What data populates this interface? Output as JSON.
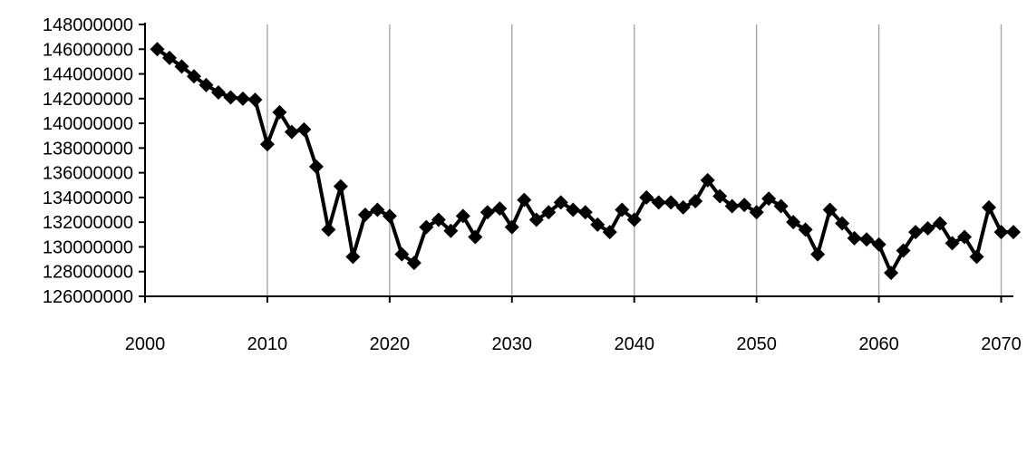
{
  "chart_data": {
    "type": "line",
    "title": "",
    "xlabel": "",
    "ylabel": "",
    "xlim": [
      2000,
      2071
    ],
    "ylim": [
      126000000,
      148000000
    ],
    "x_ticks": [
      2000,
      2010,
      2020,
      2030,
      2040,
      2050,
      2060,
      2070
    ],
    "x_tick_labels": [
      "2000",
      "2010",
      "2020",
      "2030",
      "2040",
      "2050",
      "2060",
      "2070"
    ],
    "y_ticks": [
      126000000,
      128000000,
      130000000,
      132000000,
      134000000,
      136000000,
      138000000,
      140000000,
      142000000,
      144000000,
      146000000,
      148000000
    ],
    "y_tick_labels": [
      "126000000",
      "128000000",
      "130000000",
      "132000000",
      "134000000",
      "136000000",
      "138000000",
      "140000000",
      "142000000",
      "144000000",
      "146000000",
      "148000000"
    ],
    "grid": "vertical-major",
    "legend": "none",
    "colors": {
      "line": "#000000",
      "marker": "#000000",
      "grid": "#a6a6a6",
      "axis": "#000000"
    },
    "series": [
      {
        "marker": "diamond",
        "x": [
          2001,
          2002,
          2003,
          2004,
          2005,
          2006,
          2007,
          2008,
          2009,
          2010,
          2011,
          2012,
          2013,
          2014,
          2015,
          2016,
          2017,
          2018,
          2019,
          2020,
          2021,
          2022,
          2023,
          2024,
          2025,
          2026,
          2027,
          2028,
          2029,
          2030,
          2031,
          2032,
          2033,
          2034,
          2035,
          2036,
          2037,
          2038,
          2039,
          2040,
          2041,
          2042,
          2043,
          2044,
          2045,
          2046,
          2047,
          2048,
          2049,
          2050,
          2051,
          2052,
          2053,
          2054,
          2055,
          2056,
          2057,
          2058,
          2059,
          2060,
          2061,
          2062,
          2063,
          2064,
          2065,
          2066,
          2067,
          2068,
          2069,
          2070,
          2071
        ],
        "values": [
          146000000,
          145300000,
          144600000,
          143800000,
          143100000,
          142500000,
          142100000,
          142000000,
          141900000,
          138300000,
          140900000,
          139300000,
          139500000,
          136500000,
          131400000,
          134900000,
          129200000,
          132600000,
          133000000,
          132500000,
          129400000,
          128700000,
          131600000,
          132200000,
          131300000,
          132500000,
          130800000,
          132800000,
          133100000,
          131600000,
          133800000,
          132200000,
          132800000,
          133600000,
          133000000,
          132800000,
          131800000,
          131200000,
          133000000,
          132200000,
          134000000,
          133600000,
          133600000,
          133200000,
          133700000,
          135400000,
          134100000,
          133300000,
          133400000,
          132800000,
          133900000,
          133300000,
          132000000,
          131400000,
          129400000,
          133000000,
          131900000,
          130700000,
          130600000,
          130200000,
          127900000,
          129700000,
          131200000,
          131500000,
          131900000,
          130300000,
          130800000,
          129200000,
          133200000,
          131200000,
          131200000
        ]
      }
    ]
  }
}
